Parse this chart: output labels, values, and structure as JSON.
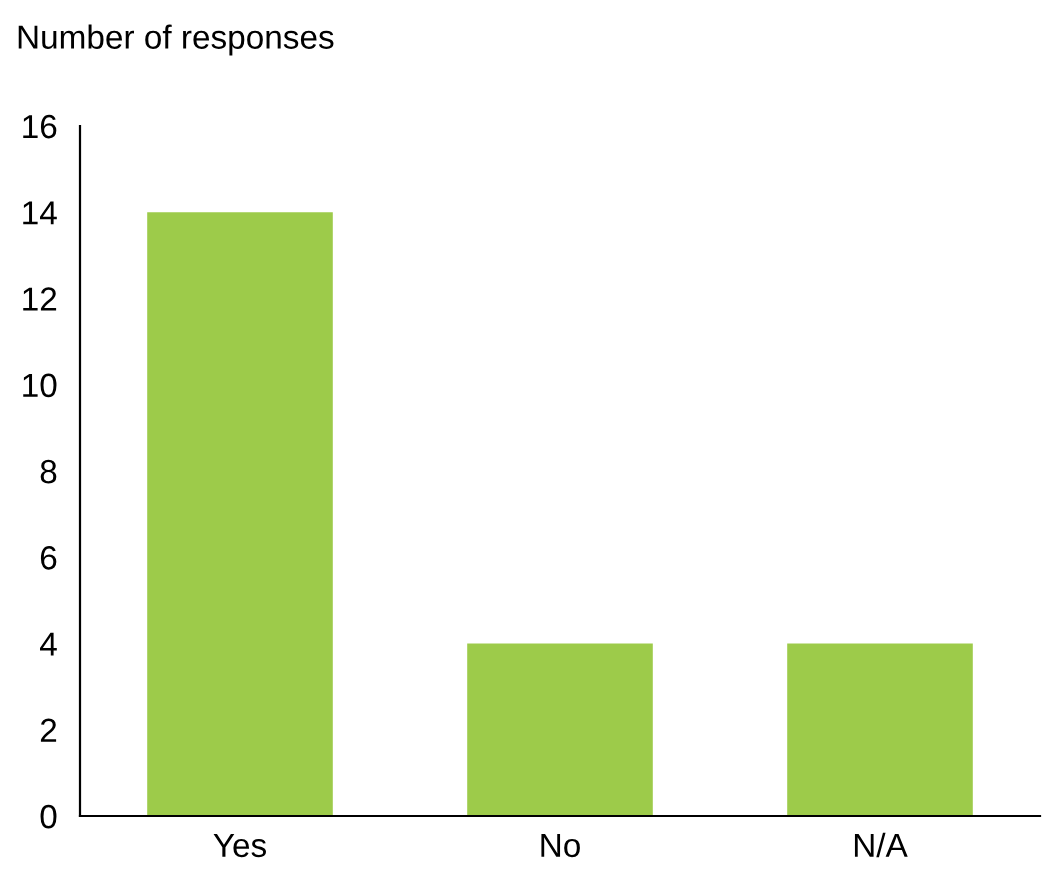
{
  "chart_data": {
    "type": "bar",
    "ylabel": "Number of responses",
    "categories": [
      "Yes",
      "No",
      "N/A"
    ],
    "values": [
      14,
      4,
      4
    ],
    "color": "#9dcb4a",
    "ylim": [
      0,
      16
    ],
    "yticks": [
      0,
      2,
      4,
      6,
      8,
      10,
      12,
      14,
      16
    ],
    "grid": false,
    "legend": false
  }
}
